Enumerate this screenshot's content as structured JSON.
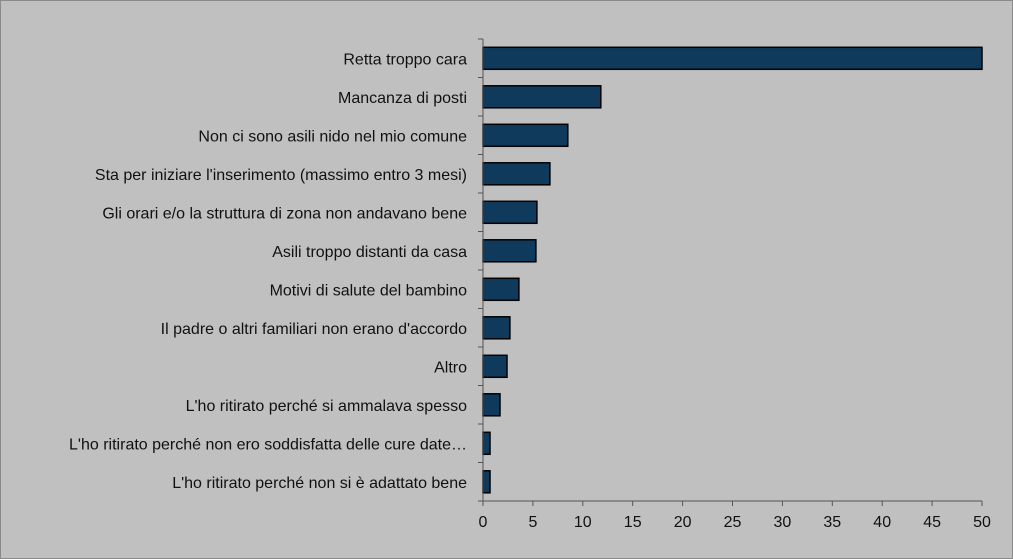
{
  "chart_data": {
    "type": "bar",
    "orientation": "horizontal",
    "categories": [
      "Retta troppo cara",
      "Mancanza di posti",
      "Non ci sono asili nido nel mio comune",
      "Sta per iniziare l'inserimento (massimo entro 3 mesi)",
      "Gli orari e/o la struttura di zona non andavano bene",
      "Asili troppo distanti da casa",
      "Motivi di salute del bambino",
      "Il padre o altri familiari non erano d'accordo",
      "Altro",
      "L'ho ritirato perché si ammalava spesso",
      "L'ho ritirato perché non ero soddisfatta delle cure date…",
      "L'ho ritirato perché non si è adattato bene"
    ],
    "values": [
      50,
      11.8,
      8.5,
      6.7,
      5.4,
      5.3,
      3.6,
      2.7,
      2.4,
      1.7,
      0.7,
      0.7
    ],
    "xlim": [
      0,
      50
    ],
    "xticks": [
      "0",
      "5",
      "10",
      "15",
      "20",
      "25",
      "30",
      "35",
      "40",
      "45",
      "50"
    ],
    "grid": false,
    "bar_color": "#0f3a5c",
    "bar_edge_color": "#000000",
    "background_color": "#c0c0c0"
  }
}
